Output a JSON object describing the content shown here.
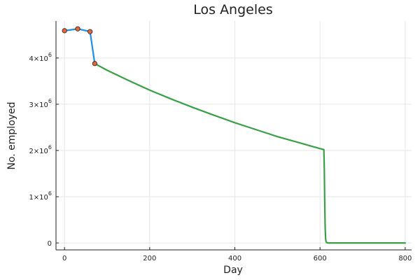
{
  "chart_data": {
    "type": "line",
    "title": "Los Angeles",
    "xlabel": "Day",
    "ylabel": "No. employed",
    "xlim": [
      -20,
      815
    ],
    "ylim": [
      -150000,
      4800000
    ],
    "x_ticks": [
      0,
      200,
      400,
      600,
      800
    ],
    "x_tick_labels": [
      "0",
      "200",
      "400",
      "600",
      "800"
    ],
    "y_ticks": [
      0,
      1000000,
      2000000,
      3000000,
      4000000
    ],
    "y_tick_labels": [
      {
        "base": "0",
        "exp": ""
      },
      {
        "base": "1×10",
        "exp": "6"
      },
      {
        "base": "2×10",
        "exp": "6"
      },
      {
        "base": "3×10",
        "exp": "6"
      },
      {
        "base": "4×10",
        "exp": "6"
      }
    ],
    "grid": true,
    "colors": {
      "observed_line": "#1f8fe8",
      "observed_marker": "#e3673a",
      "projection_line": "#3aa046"
    },
    "series": [
      {
        "kind": "observed",
        "x": [
          0,
          31,
          60,
          71
        ],
        "y": [
          4590000,
          4630000,
          4570000,
          3880000
        ],
        "markers": true
      },
      {
        "kind": "projection",
        "x": [
          71,
          100,
          150,
          200,
          250,
          300,
          350,
          400,
          450,
          500,
          550,
          600,
          609,
          610,
          611,
          612,
          613,
          614,
          616,
          620,
          700,
          800
        ],
        "y": [
          3880000,
          3735000,
          3515000,
          3305000,
          3115000,
          2935000,
          2765000,
          2600000,
          2450000,
          2300000,
          2170000,
          2040000,
          2020000,
          1600000,
          900000,
          350000,
          100000,
          30000,
          5000,
          0,
          0,
          0
        ],
        "markers": false
      }
    ]
  }
}
